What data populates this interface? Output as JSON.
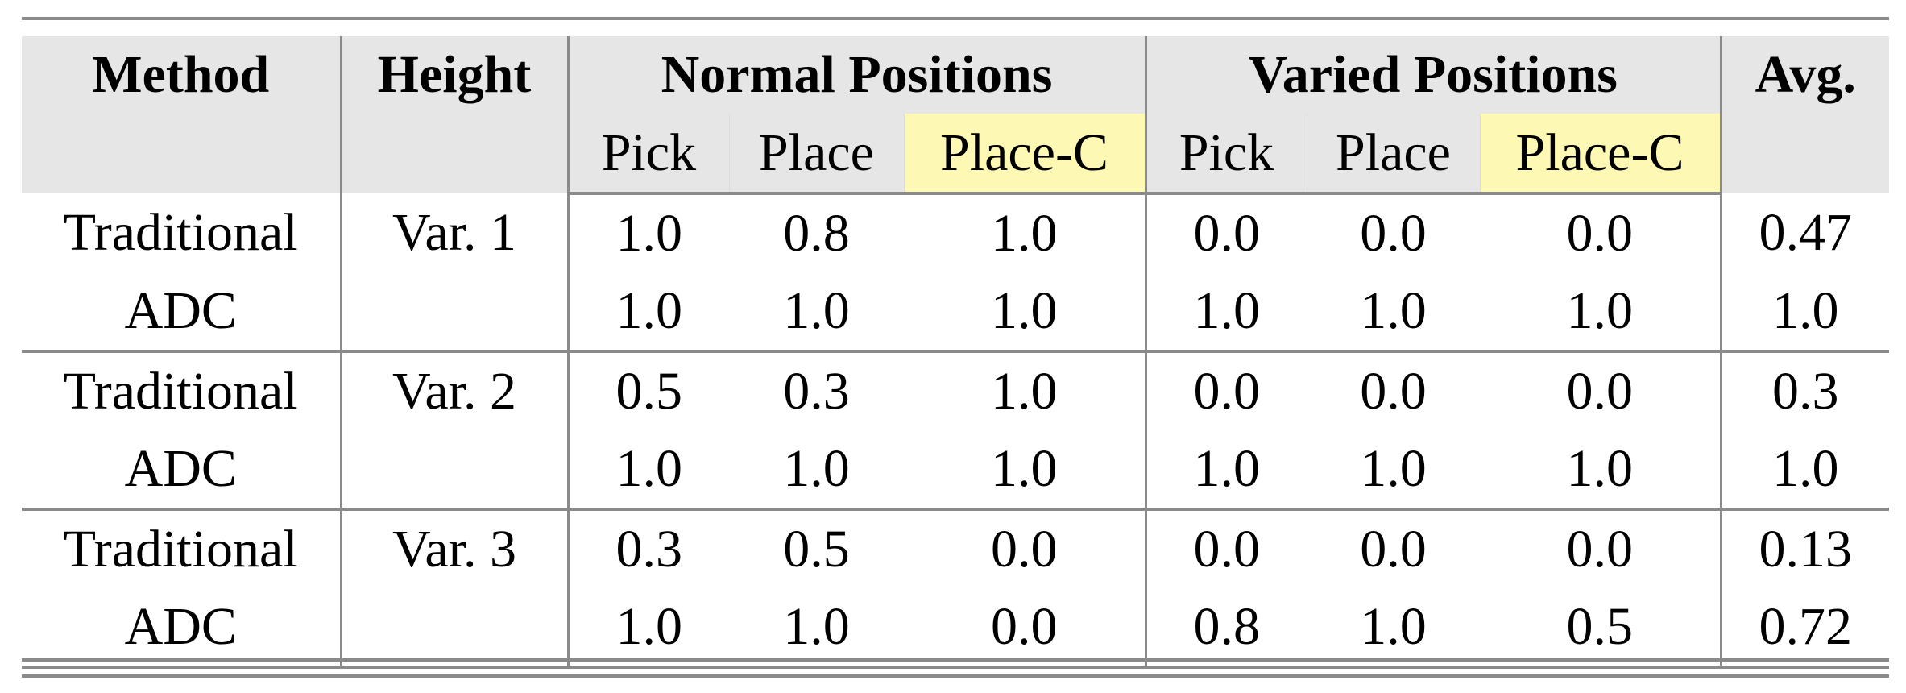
{
  "header": {
    "method": "Method",
    "height": "Height",
    "normal_positions": "Normal Positions",
    "varied_positions": "Varied Positions",
    "avg": "Avg.",
    "sub": [
      "Pick",
      "Place",
      "Place-C",
      "Pick",
      "Place",
      "Place-C"
    ]
  },
  "highlight_color": "#fdf8b4",
  "header_bg": "#e6e6e6",
  "rows": [
    {
      "method": "Traditional",
      "height": "Var. 1",
      "values": [
        "1.0",
        "0.8",
        "1.0",
        "0.0",
        "0.0",
        "0.0"
      ],
      "avg": "0.47"
    },
    {
      "method": "ADC",
      "height": "",
      "values": [
        "1.0",
        "1.0",
        "1.0",
        "1.0",
        "1.0",
        "1.0"
      ],
      "avg": "1.0"
    },
    {
      "method": "Traditional",
      "height": "Var. 2",
      "values": [
        "0.5",
        "0.3",
        "1.0",
        "0.0",
        "0.0",
        "0.0"
      ],
      "avg": "0.3"
    },
    {
      "method": "ADC",
      "height": "",
      "values": [
        "1.0",
        "1.0",
        "1.0",
        "1.0",
        "1.0",
        "1.0"
      ],
      "avg": "1.0"
    },
    {
      "method": "Traditional",
      "height": "Var. 3",
      "values": [
        "0.3",
        "0.5",
        "0.0",
        "0.0",
        "0.0",
        "0.0"
      ],
      "avg": "0.13"
    },
    {
      "method": "ADC",
      "height": "",
      "values": [
        "1.0",
        "1.0",
        "0.0",
        "0.8",
        "1.0",
        "0.5"
      ],
      "avg": "0.72"
    }
  ]
}
